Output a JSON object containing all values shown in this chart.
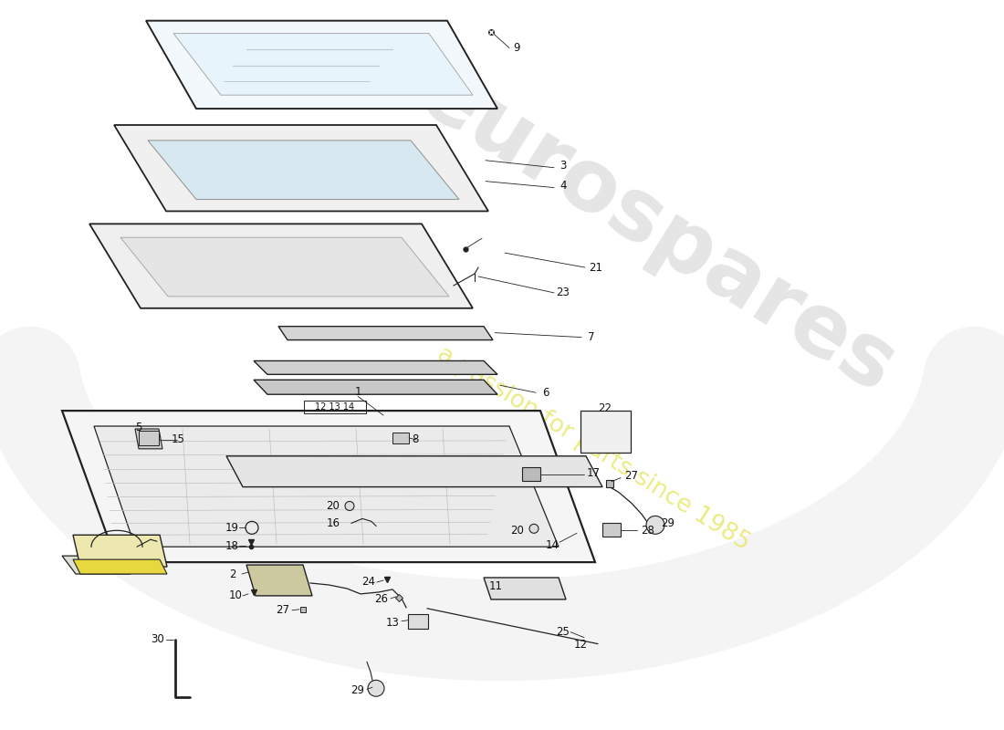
{
  "bg_color": "#ffffff",
  "line_color": "#222222",
  "watermark_color": "#e8e8e8",
  "watermark_yellow": "#e8e870"
}
